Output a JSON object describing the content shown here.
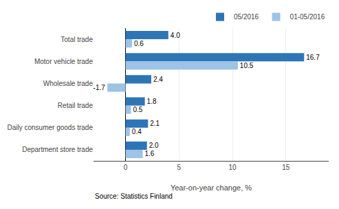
{
  "chart_data": {
    "type": "bar",
    "orientation": "horizontal",
    "categories": [
      "Total trade",
      "Motor vehicle trade",
      "Wholesale trade",
      "Retail trade",
      "Daily consumer goods trade",
      "Department store trade"
    ],
    "series": [
      {
        "name": "05/2016",
        "color": "#2E75B6",
        "values": [
          4.0,
          16.7,
          2.4,
          1.8,
          2.1,
          2.0
        ],
        "value_labels": [
          "4.0",
          "16.7",
          "2.4",
          "1.8",
          "2.1",
          "2.0"
        ]
      },
      {
        "name": "01-05/2016",
        "color": "#9DC3E6",
        "values": [
          0.6,
          10.5,
          -1.7,
          0.5,
          0.4,
          1.6
        ],
        "value_labels": [
          "0.6",
          "10.5",
          "-1.7",
          "0.5",
          "0.4",
          "1.6"
        ]
      }
    ],
    "xlabel": "Year-on-year change, %",
    "xlim": [
      -3,
      19
    ],
    "xticks": [
      0,
      5,
      10,
      15
    ],
    "grid": true,
    "legend": "upper right",
    "data_labels": true,
    "annotations": [
      "Source: Statistics Finland"
    ]
  }
}
